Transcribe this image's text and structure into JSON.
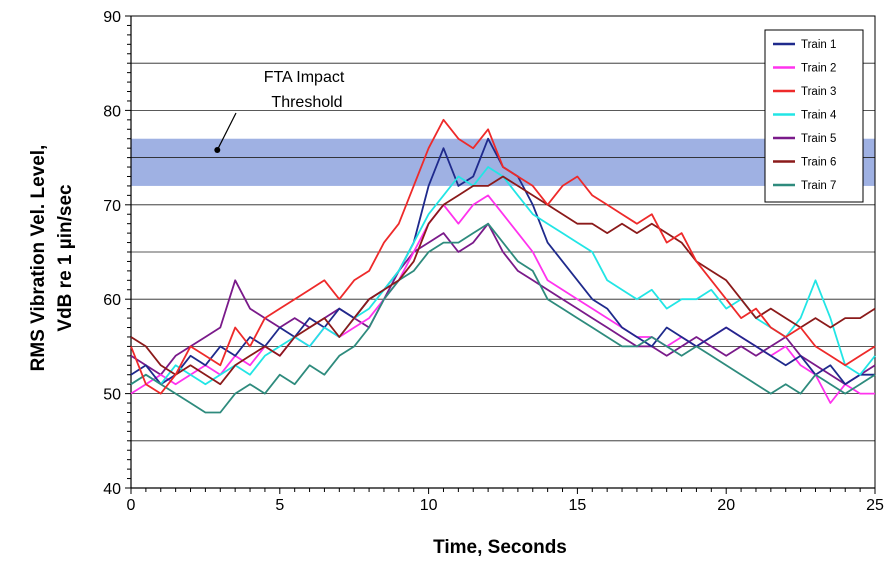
{
  "chart_data": {
    "type": "line",
    "title": "",
    "xlabel": "Time, Seconds",
    "ylabel_line1": "RMS Vibration Vel. Level,",
    "ylabel_line2": "VdB re 1 µin/sec",
    "xlim": [
      0,
      25
    ],
    "ylim": [
      40,
      90
    ],
    "x_ticks": [
      0,
      5,
      10,
      15,
      20,
      25
    ],
    "y_ticks": [
      40,
      50,
      60,
      70,
      80,
      90
    ],
    "gridlines_y": [
      45,
      50,
      55,
      60,
      65,
      70,
      75,
      80,
      85
    ],
    "legend_position": "top-right",
    "threshold_band": {
      "low": 72,
      "high": 77,
      "line": 75,
      "color": "#9fb1e3"
    },
    "annotation": {
      "line1": "FTA Impact",
      "line2": "Threshold",
      "point": [
        2.9,
        75.8
      ]
    },
    "x": [
      0,
      0.5,
      1,
      1.5,
      2,
      2.5,
      3,
      3.5,
      4,
      4.5,
      5,
      5.5,
      6,
      6.5,
      7,
      7.5,
      8,
      8.5,
      9,
      9.5,
      10,
      10.5,
      11,
      11.5,
      12,
      12.5,
      13,
      13.5,
      14,
      14.5,
      15,
      15.5,
      16,
      16.5,
      17,
      17.5,
      18,
      18.5,
      19,
      19.5,
      20,
      20.5,
      21,
      21.5,
      22,
      22.5,
      23,
      23.5,
      24,
      24.5,
      25
    ],
    "series": [
      {
        "name": "Train 1",
        "color": "#1f2a8c",
        "values": [
          52,
          53,
          51,
          52,
          54,
          53,
          55,
          54,
          56,
          55,
          57,
          56,
          58,
          57,
          59,
          58,
          60,
          61,
          63,
          66,
          72,
          76,
          72,
          73,
          77,
          74,
          73,
          70,
          66,
          64,
          62,
          60,
          59,
          57,
          56,
          55,
          57,
          56,
          55,
          56,
          57,
          56,
          55,
          54,
          53,
          54,
          52,
          53,
          51,
          52,
          52
        ]
      },
      {
        "name": "Train 2",
        "color": "#ff33ee",
        "values": [
          50,
          51,
          52,
          51,
          52,
          53,
          52,
          54,
          53,
          55,
          54,
          56,
          55,
          57,
          56,
          57,
          58,
          60,
          62,
          65,
          68,
          70,
          68,
          70,
          71,
          69,
          67,
          65,
          62,
          61,
          60,
          59,
          58,
          57,
          56,
          56,
          55,
          56,
          55,
          56,
          57,
          56,
          55,
          54,
          55,
          53,
          52,
          49,
          51,
          50,
          50
        ]
      },
      {
        "name": "Train 3",
        "color": "#ee2a2a",
        "values": [
          55,
          51,
          50,
          52,
          55,
          54,
          53,
          57,
          55,
          58,
          59,
          60,
          61,
          62,
          60,
          62,
          63,
          66,
          68,
          72,
          76,
          79,
          77,
          76,
          78,
          74,
          73,
          72,
          70,
          72,
          73,
          71,
          70,
          69,
          68,
          69,
          66,
          67,
          64,
          62,
          60,
          58,
          59,
          57,
          56,
          57,
          55,
          54,
          53,
          54,
          55
        ]
      },
      {
        "name": "Train 4",
        "color": "#22e5e5",
        "values": [
          51,
          52,
          51,
          53,
          52,
          51,
          52,
          53,
          52,
          54,
          55,
          56,
          55,
          57,
          56,
          58,
          59,
          61,
          63,
          66,
          69,
          71,
          73,
          72,
          74,
          73,
          71,
          69,
          68,
          67,
          66,
          65,
          62,
          61,
          60,
          61,
          59,
          60,
          60,
          61,
          59,
          60,
          58,
          57,
          56,
          58,
          62,
          58,
          53,
          52,
          54
        ]
      },
      {
        "name": "Train 5",
        "color": "#7a1a8a",
        "values": [
          54,
          53,
          52,
          54,
          55,
          56,
          57,
          62,
          59,
          58,
          57,
          58,
          57,
          58,
          59,
          58,
          57,
          60,
          63,
          65,
          66,
          67,
          65,
          66,
          68,
          65,
          63,
          62,
          61,
          60,
          59,
          58,
          57,
          56,
          55,
          55,
          54,
          55,
          56,
          55,
          54,
          55,
          54,
          55,
          56,
          54,
          53,
          52,
          51,
          52,
          53
        ]
      },
      {
        "name": "Train 6",
        "color": "#8b1a1a",
        "values": [
          56,
          55,
          53,
          52,
          53,
          52,
          51,
          53,
          54,
          55,
          54,
          56,
          57,
          58,
          56,
          58,
          60,
          61,
          62,
          64,
          68,
          70,
          71,
          72,
          72,
          73,
          72,
          71,
          70,
          69,
          68,
          68,
          67,
          68,
          67,
          68,
          67,
          66,
          64,
          63,
          62,
          60,
          58,
          59,
          58,
          57,
          58,
          57,
          58,
          58,
          59
        ]
      },
      {
        "name": "Train 7",
        "color": "#2e8b7d",
        "values": [
          51,
          52,
          51,
          50,
          49,
          48,
          48,
          50,
          51,
          50,
          52,
          51,
          53,
          52,
          54,
          55,
          57,
          60,
          62,
          63,
          65,
          66,
          66,
          67,
          68,
          66,
          64,
          63,
          60,
          59,
          58,
          57,
          56,
          55,
          55,
          56,
          55,
          54,
          55,
          54,
          53,
          52,
          51,
          50,
          51,
          50,
          52,
          51,
          50,
          51,
          52
        ]
      }
    ]
  }
}
